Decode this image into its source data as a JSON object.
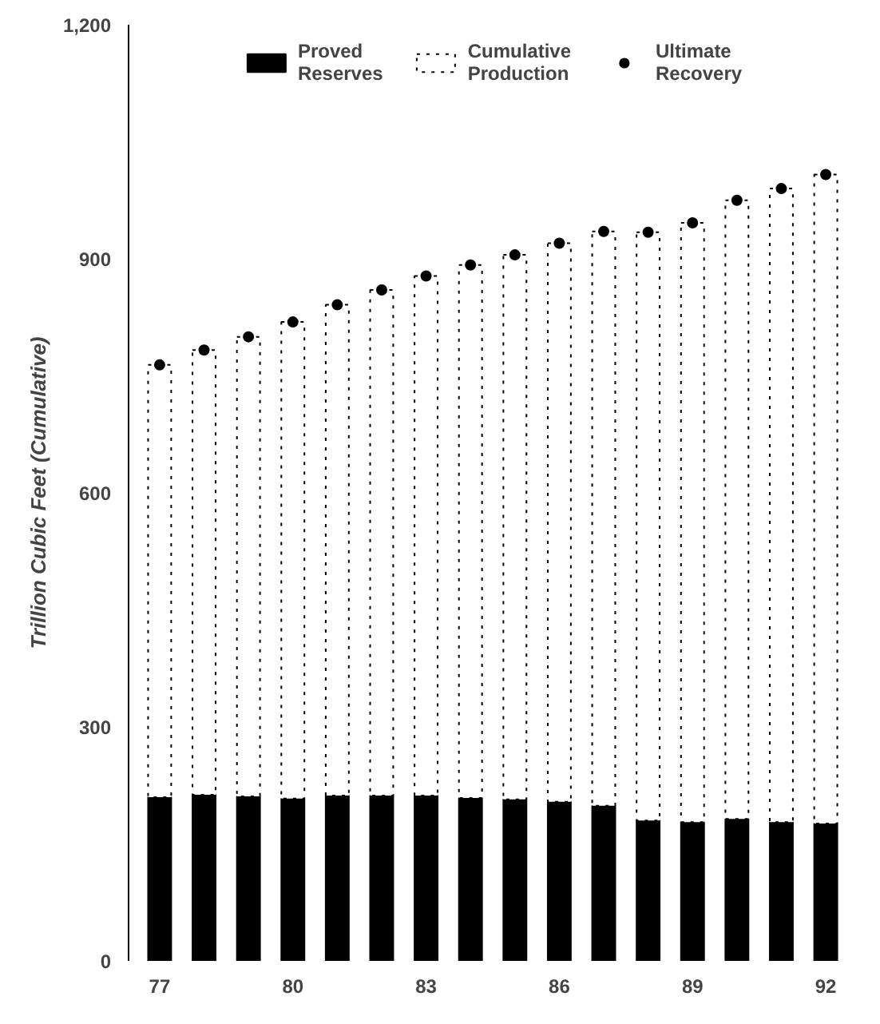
{
  "chart_data": {
    "type": "bar",
    "stacked": true,
    "ylabel": "Trillion Cubic Feet (Cumulative)",
    "categories": [
      "77",
      null,
      null,
      "80",
      null,
      null,
      "83",
      null,
      null,
      "86",
      null,
      null,
      "89",
      null,
      null,
      "92"
    ],
    "series": [
      {
        "name": "Proved Reserves",
        "color": "#000000",
        "values": [
          210,
          213,
          211,
          208,
          212,
          212,
          212,
          209,
          207,
          204,
          199,
          180,
          178,
          182,
          178,
          176
        ]
      },
      {
        "name": "Cumulative Production",
        "color": "#ffffff",
        "values": [
          554,
          570,
          589,
          611,
          629,
          648,
          666,
          683,
          698,
          716,
          736,
          754,
          768,
          793,
          812,
          832
        ]
      },
      {
        "name": "Ultimate Recovery",
        "type": "scatter",
        "color": "#000000",
        "values": [
          764,
          783,
          800,
          819,
          841,
          860,
          878,
          892,
          905,
          920,
          935,
          934,
          946,
          975,
          990,
          1008
        ]
      }
    ],
    "ylim": [
      0,
      1200
    ],
    "yticks": [
      0,
      300,
      600,
      900,
      {
        "value": 1200,
        "label": "1,200"
      }
    ],
    "grid": false,
    "legend": "top",
    "marker": "circle"
  }
}
